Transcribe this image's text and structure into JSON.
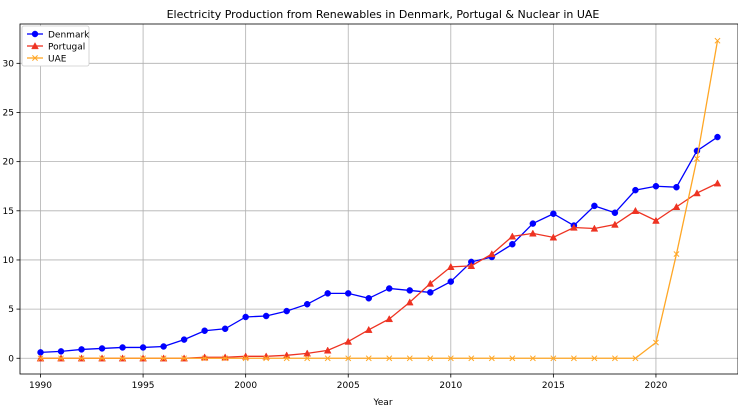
{
  "chart_data": {
    "type": "line",
    "title": "Electricity Production from Renewables in Denmark, Portugal & Nuclear in UAE",
    "xlabel": "Year",
    "ylabel": "",
    "xlim": [
      1989,
      2024
    ],
    "ylim": [
      -1.6,
      34
    ],
    "xticks": [
      1990,
      1995,
      2000,
      2005,
      2010,
      2015,
      2020
    ],
    "yticks": [
      0,
      5,
      10,
      15,
      20,
      25,
      30
    ],
    "grid": true,
    "legend_position": "upper-left",
    "x": [
      1990,
      1991,
      1992,
      1993,
      1994,
      1995,
      1996,
      1997,
      1998,
      1999,
      2000,
      2001,
      2002,
      2003,
      2004,
      2005,
      2006,
      2007,
      2008,
      2009,
      2010,
      2011,
      2012,
      2013,
      2014,
      2015,
      2016,
      2017,
      2018,
      2019,
      2020,
      2021,
      2022,
      2023
    ],
    "series": [
      {
        "name": "Denmark",
        "color": "#0000ff",
        "marker": "circle",
        "values": [
          0.6,
          0.7,
          0.9,
          1.0,
          1.1,
          1.1,
          1.2,
          1.9,
          2.8,
          3.0,
          4.2,
          4.3,
          4.8,
          5.5,
          6.6,
          6.6,
          6.1,
          7.1,
          6.9,
          6.7,
          7.8,
          9.8,
          10.3,
          11.6,
          13.7,
          14.7,
          13.5,
          15.5,
          14.8,
          17.1,
          17.5,
          17.4,
          21.1,
          22.5
        ]
      },
      {
        "name": "Portugal",
        "color": "#ee3322",
        "marker": "triangle",
        "values": [
          0.0,
          0.0,
          0.0,
          0.0,
          0.0,
          0.0,
          0.0,
          0.0,
          0.1,
          0.1,
          0.2,
          0.2,
          0.3,
          0.5,
          0.8,
          1.7,
          2.9,
          4.0,
          5.7,
          7.6,
          9.3,
          9.4,
          10.6,
          12.4,
          12.7,
          12.3,
          13.3,
          13.2,
          13.6,
          15.0,
          14.0,
          15.4,
          16.8,
          17.8
        ]
      },
      {
        "name": "UAE",
        "color": "#ffa726",
        "marker": "x",
        "values": [
          0,
          0,
          0,
          0,
          0,
          0,
          0,
          0,
          0,
          0,
          0,
          0,
          0,
          0,
          0,
          0,
          0,
          0,
          0,
          0,
          0,
          0,
          0,
          0,
          0,
          0,
          0,
          0,
          0,
          0,
          1.6,
          10.6,
          20.3,
          32.3
        ]
      }
    ]
  }
}
